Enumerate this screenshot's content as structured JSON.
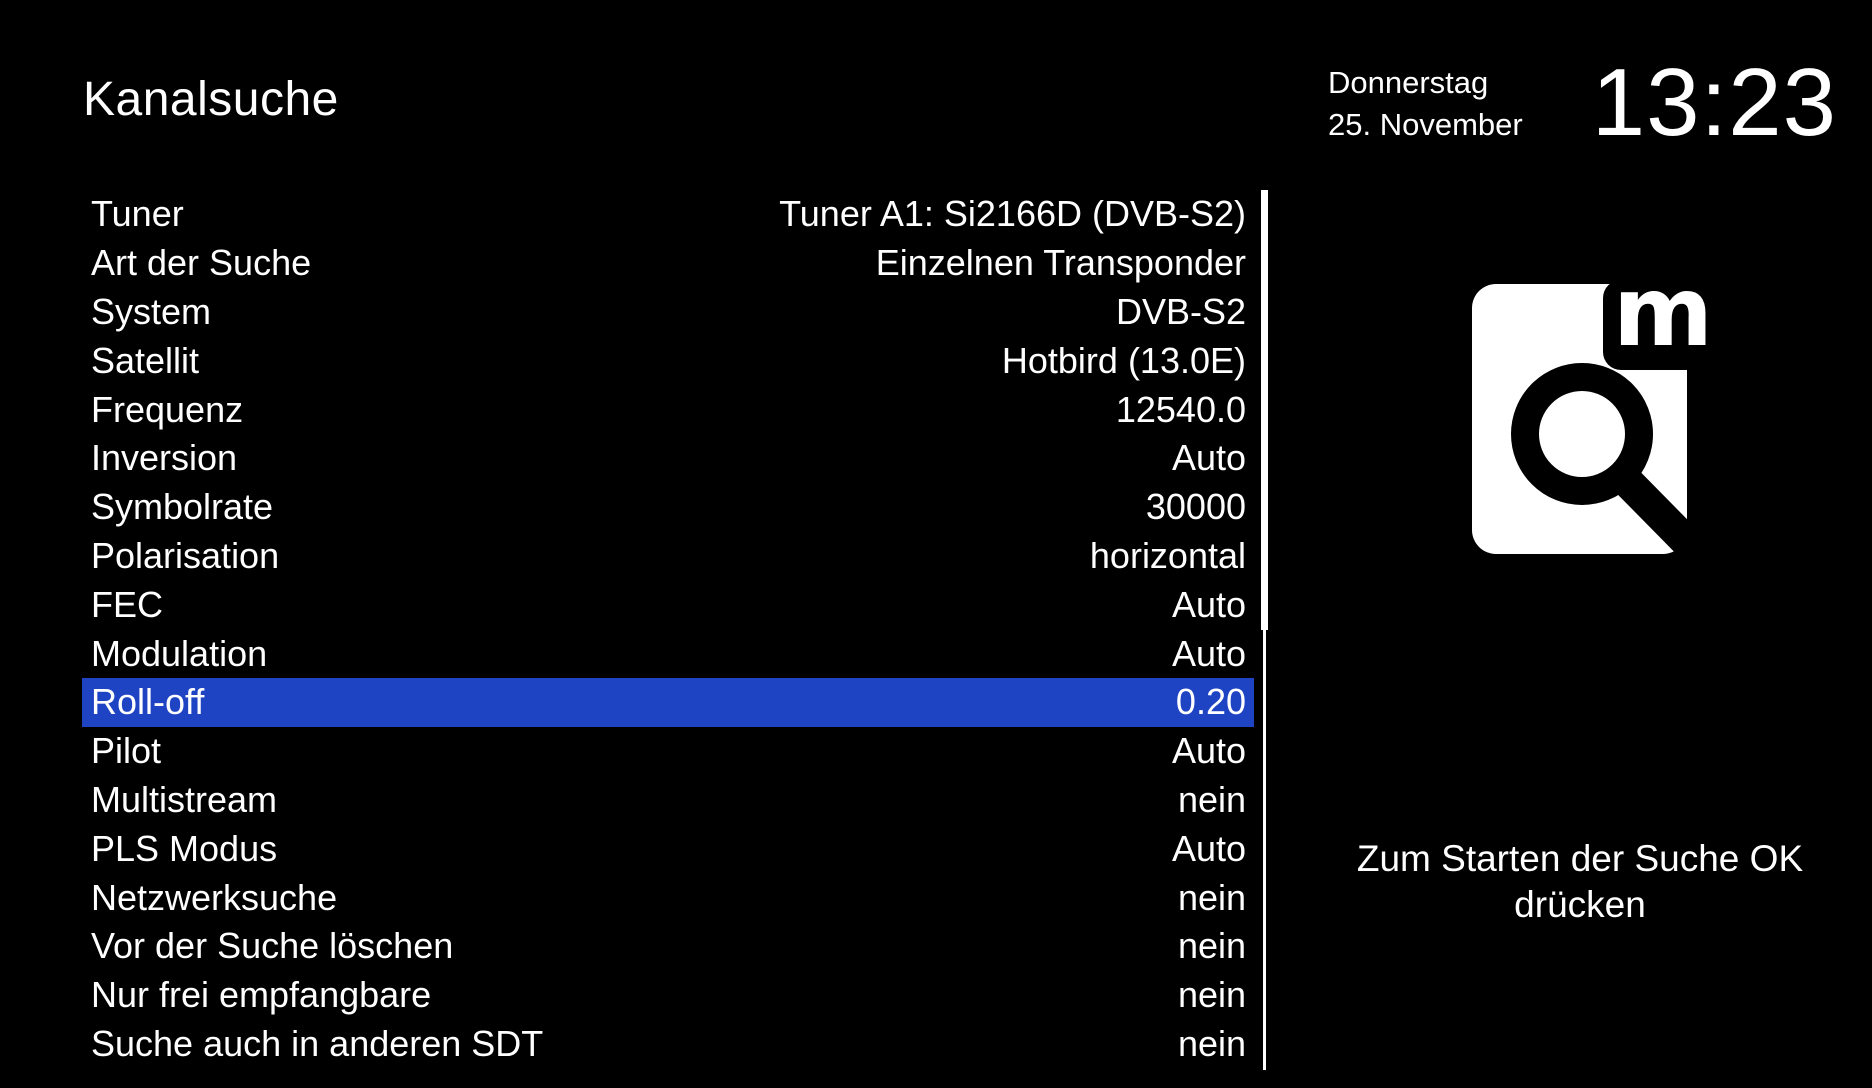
{
  "header": {
    "title": "Kanalsuche",
    "weekday": "Donnerstag",
    "date": "25. November",
    "time": "13:23"
  },
  "settings": [
    {
      "label": "Tuner",
      "value": "Tuner A1: Si2166D (DVB-S2)"
    },
    {
      "label": "Art der Suche",
      "value": "Einzelnen Transponder"
    },
    {
      "label": "System",
      "value": "DVB-S2"
    },
    {
      "label": "Satellit",
      "value": "Hotbird (13.0E)"
    },
    {
      "label": "Frequenz",
      "value": "12540.0"
    },
    {
      "label": "Inversion",
      "value": "Auto"
    },
    {
      "label": "Symbolrate",
      "value": "30000"
    },
    {
      "label": "Polarisation",
      "value": "horizontal"
    },
    {
      "label": "FEC",
      "value": "Auto"
    },
    {
      "label": "Modulation",
      "value": "Auto"
    },
    {
      "label": "Roll-off",
      "value": "0.20"
    },
    {
      "label": "Pilot",
      "value": "Auto"
    },
    {
      "label": "Multistream",
      "value": "nein"
    },
    {
      "label": "PLS Modus",
      "value": "Auto"
    },
    {
      "label": "Netzwerksuche",
      "value": "nein"
    },
    {
      "label": "Vor der Suche löschen",
      "value": "nein"
    },
    {
      "label": "Nur frei empfangbare",
      "value": "nein"
    },
    {
      "label": "Suche auch in anderen SDT",
      "value": "nein"
    }
  ],
  "selected_index": 10,
  "scroll_position": 0.5,
  "logo_icon": "channel-search-logo-icon",
  "hint": "Zum Starten der Suche OK drücken",
  "colors": {
    "background": "#000000",
    "text": "#ffffff",
    "selection": "#1e44c4"
  }
}
